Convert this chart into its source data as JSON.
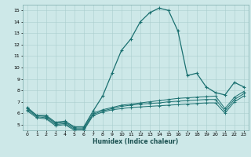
{
  "xlabel": "Humidex (Indice chaleur)",
  "bg_color": "#cde8e8",
  "grid_color": "#aacece",
  "line_color": "#1a7070",
  "xlim": [
    -0.5,
    23.5
  ],
  "ylim": [
    4.5,
    15.5
  ],
  "xticks": [
    0,
    1,
    2,
    3,
    4,
    5,
    6,
    7,
    8,
    9,
    10,
    11,
    12,
    13,
    14,
    15,
    16,
    17,
    18,
    19,
    20,
    21,
    22,
    23
  ],
  "yticks": [
    5,
    6,
    7,
    8,
    9,
    10,
    11,
    12,
    13,
    14,
    15
  ],
  "line1_y": [
    6.5,
    5.8,
    5.8,
    5.2,
    5.3,
    4.8,
    4.8,
    6.2,
    7.5,
    9.5,
    11.5,
    12.5,
    14.0,
    14.8,
    15.2,
    15.0,
    13.2,
    9.3,
    9.5,
    8.3,
    7.8,
    7.6,
    8.7,
    8.3
  ],
  "line2_y": [
    6.4,
    5.8,
    5.7,
    5.1,
    5.2,
    4.7,
    4.7,
    6.0,
    6.3,
    6.5,
    6.7,
    6.8,
    6.9,
    7.0,
    7.1,
    7.2,
    7.3,
    7.35,
    7.4,
    7.45,
    7.5,
    6.4,
    7.4,
    7.9
  ],
  "line3_y": [
    6.3,
    5.7,
    5.6,
    5.0,
    5.1,
    4.6,
    4.6,
    5.9,
    6.2,
    6.4,
    6.6,
    6.7,
    6.8,
    6.85,
    6.9,
    7.0,
    7.05,
    7.1,
    7.15,
    7.2,
    7.2,
    6.2,
    7.2,
    7.7
  ],
  "line4_y": [
    6.2,
    5.6,
    5.5,
    4.9,
    5.0,
    4.5,
    4.5,
    5.8,
    6.1,
    6.3,
    6.4,
    6.5,
    6.55,
    6.6,
    6.65,
    6.7,
    6.75,
    6.8,
    6.85,
    6.9,
    6.9,
    6.0,
    7.0,
    7.5
  ]
}
